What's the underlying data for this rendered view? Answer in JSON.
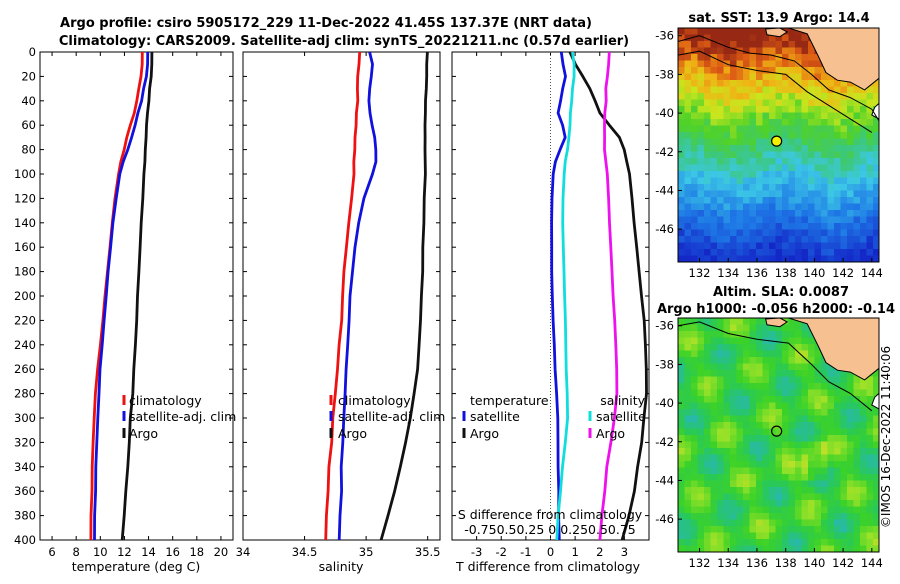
{
  "figure": {
    "title_line1": "Argo profile: csiro 5905172_229 11-Dec-2022 41.45S 137.37E (NRT data)",
    "title_line2": "Climatology: CARS2009. Satellite-adj clim: synTS_20221211.nc (0.57d earlier)",
    "side_stamp": "©IMOS 16-Dec-2022 11:40:06"
  },
  "chart_data": [
    {
      "id": "temperature",
      "type": "line",
      "xlabel": "temperature (deg C)",
      "xlim": [
        5,
        21
      ],
      "xticks": [
        "6",
        "8",
        "10",
        "12",
        "14",
        "16",
        "18",
        "20"
      ],
      "xtick_values": [
        6,
        8,
        10,
        12,
        14,
        16,
        18,
        20
      ],
      "ylim": [
        0,
        400
      ],
      "yticks": [
        "0",
        "20",
        "40",
        "60",
        "80",
        "100",
        "120",
        "140",
        "160",
        "180",
        "200",
        "220",
        "240",
        "260",
        "280",
        "300",
        "320",
        "340",
        "360",
        "380",
        "400"
      ],
      "depth": [
        0,
        10,
        20,
        30,
        40,
        50,
        60,
        70,
        80,
        90,
        100,
        120,
        140,
        160,
        180,
        200,
        220,
        240,
        260,
        280,
        300,
        320,
        340,
        360,
        380,
        400
      ],
      "series": [
        {
          "name": "climatology",
          "color": "#ee1111",
          "values": [
            13.5,
            13.45,
            13.35,
            13.2,
            13.0,
            12.8,
            12.5,
            12.2,
            12.0,
            11.7,
            11.5,
            11.2,
            11.0,
            10.8,
            10.6,
            10.4,
            10.2,
            10.0,
            9.8,
            9.6,
            9.5,
            9.4,
            9.35,
            9.3,
            9.25,
            9.2
          ]
        },
        {
          "name": "satellite-adj. clim",
          "color": "#1111dd",
          "values": [
            13.95,
            13.9,
            13.8,
            13.6,
            13.4,
            13.1,
            12.9,
            12.6,
            12.3,
            11.9,
            11.6,
            11.3,
            11.05,
            10.85,
            10.65,
            10.5,
            10.3,
            10.15,
            10.0,
            9.9,
            9.8,
            9.7,
            9.65,
            9.6,
            9.55,
            9.5
          ]
        },
        {
          "name": "Argo",
          "color": "#111111",
          "values": [
            14.3,
            14.25,
            14.2,
            14.1,
            14.0,
            13.9,
            13.85,
            13.8,
            13.75,
            13.7,
            13.6,
            13.5,
            13.4,
            13.3,
            13.2,
            13.1,
            13.0,
            12.9,
            12.8,
            12.7,
            12.5,
            12.4,
            12.3,
            12.1,
            12.0,
            11.8
          ]
        }
      ]
    },
    {
      "id": "salinity",
      "type": "line",
      "xlabel": "salinity",
      "xlim": [
        34,
        35.6
      ],
      "xticks": [
        "34",
        "34.5",
        "35",
        "35.5"
      ],
      "xtick_values": [
        34,
        34.5,
        35,
        35.5
      ],
      "ylim": [
        0,
        400
      ],
      "depth": [
        0,
        10,
        20,
        30,
        40,
        50,
        60,
        70,
        80,
        90,
        100,
        120,
        140,
        160,
        180,
        200,
        220,
        240,
        260,
        280,
        300,
        320,
        340,
        360,
        380,
        400
      ],
      "series": [
        {
          "name": "climatology",
          "color": "#ee1111",
          "values": [
            34.95,
            34.94,
            34.93,
            34.93,
            34.93,
            34.92,
            34.92,
            34.91,
            34.91,
            34.9,
            34.9,
            34.88,
            34.86,
            34.84,
            34.82,
            34.81,
            34.8,
            34.78,
            34.77,
            34.75,
            34.73,
            34.72,
            34.7,
            34.69,
            34.68,
            34.67
          ]
        },
        {
          "name": "satellite-adj. clim",
          "color": "#1111dd",
          "values": [
            35.03,
            35.05,
            35.04,
            35.03,
            35.02,
            35.03,
            35.05,
            35.07,
            35.08,
            35.08,
            35.05,
            34.98,
            34.94,
            34.91,
            34.89,
            34.87,
            34.86,
            34.85,
            34.84,
            34.83,
            34.82,
            34.81,
            34.8,
            34.8,
            34.79,
            34.78
          ]
        },
        {
          "name": "Argo",
          "color": "#111111",
          "values": [
            35.5,
            35.49,
            35.49,
            35.49,
            35.48,
            35.48,
            35.48,
            35.48,
            35.48,
            35.48,
            35.48,
            35.47,
            35.47,
            35.46,
            35.46,
            35.45,
            35.44,
            35.43,
            35.42,
            35.39,
            35.36,
            35.32,
            35.28,
            35.23,
            35.18,
            35.12
          ]
        }
      ]
    },
    {
      "id": "difference",
      "type": "line",
      "xlabel": "T difference from climatology",
      "xlim": [
        -4,
        4
      ],
      "xticks": [
        "-3",
        "-2",
        "-1",
        "0",
        "1",
        "2",
        "3"
      ],
      "xtick_values": [
        -3,
        -2,
        -1,
        0,
        1,
        2,
        3
      ],
      "top_label": "S difference from climatology",
      "top_ticks": "-0.750.50.25  0  0.250.50.75",
      "ylim": [
        0,
        400
      ],
      "zero_line": 0,
      "legend_left_title": "temperature",
      "legend_right_title": "salinity",
      "depth": [
        0,
        10,
        20,
        30,
        40,
        50,
        60,
        70,
        80,
        90,
        100,
        120,
        140,
        160,
        180,
        200,
        220,
        240,
        260,
        280,
        300,
        320,
        340,
        360,
        380,
        400
      ],
      "series": [
        {
          "name": "satellite",
          "group": "temperature",
          "color": "#1111dd",
          "values": [
            0.45,
            0.5,
            0.6,
            0.5,
            0.4,
            0.3,
            0.5,
            0.6,
            0.4,
            0.2,
            0.1,
            0.05,
            0.05,
            0.05,
            0.05,
            0.08,
            0.1,
            0.15,
            0.2,
            0.25,
            0.3,
            0.3,
            0.32,
            0.33,
            0.34,
            0.35
          ]
        },
        {
          "name": "Argo",
          "group": "temperature",
          "color": "#111111",
          "values": [
            0.8,
            1.0,
            1.3,
            1.6,
            1.8,
            2.0,
            2.4,
            2.8,
            3.0,
            3.1,
            3.2,
            3.3,
            3.4,
            3.5,
            3.6,
            3.7,
            3.8,
            3.85,
            3.9,
            3.9,
            3.8,
            3.7,
            3.55,
            3.4,
            3.2,
            2.9
          ]
        },
        {
          "name": "satellite",
          "group": "salinity",
          "color": "#11dddd",
          "values": [
            0.9,
            0.95,
            0.95,
            0.9,
            0.85,
            0.8,
            0.8,
            0.75,
            0.7,
            0.6,
            0.55,
            0.5,
            0.5,
            0.52,
            0.55,
            0.58,
            0.6,
            0.62,
            0.65,
            0.68,
            0.7,
            0.6,
            0.5,
            0.4,
            0.32,
            0.25
          ]
        },
        {
          "name": "Argo",
          "group": "salinity",
          "color": "#ee11ee",
          "values": [
            2.4,
            2.35,
            2.3,
            2.25,
            2.25,
            2.2,
            2.2,
            2.2,
            2.2,
            2.25,
            2.3,
            2.35,
            2.4,
            2.45,
            2.5,
            2.55,
            2.6,
            2.65,
            2.7,
            2.7,
            2.6,
            2.45,
            2.3,
            2.2,
            2.1,
            2.0
          ]
        }
      ]
    },
    {
      "id": "sst_map",
      "type": "heatmap",
      "title": "sat. SST: 13.9  Argo: 14.4",
      "xticks": [
        "132",
        "134",
        "136",
        "138",
        "140",
        "142",
        "144"
      ],
      "xtick_values": [
        132,
        134,
        136,
        138,
        140,
        142,
        144
      ],
      "yticks": [
        "-36",
        "-38",
        "-40",
        "-42",
        "-44",
        "-46"
      ],
      "ytick_values": [
        -36,
        -38,
        -40,
        -42,
        -44,
        -46
      ],
      "xlim": [
        130.5,
        144.5
      ],
      "ylim": [
        -47.7,
        -35.6
      ],
      "marker": {
        "lon": 137.37,
        "lat": -41.45
      },
      "land_color": "#f7c091"
    },
    {
      "id": "sla_map",
      "type": "heatmap",
      "title_line1": "Altim. SLA: 0.0087",
      "title_line2": "Argo h1000: -0.056 h2000: -0.14",
      "xticks": [
        "132",
        "134",
        "136",
        "138",
        "140",
        "142",
        "144"
      ],
      "xtick_values": [
        132,
        134,
        136,
        138,
        140,
        142,
        144
      ],
      "yticks": [
        "-36",
        "-38",
        "-40",
        "-42",
        "-44",
        "-46"
      ],
      "ytick_values": [
        -36,
        -38,
        -40,
        -42,
        -44,
        -46
      ],
      "xlim": [
        130.5,
        144.5
      ],
      "ylim": [
        -47.7,
        -35.6
      ],
      "marker": {
        "lon": 137.37,
        "lat": -41.45
      },
      "land_color": "#f7c091"
    }
  ]
}
